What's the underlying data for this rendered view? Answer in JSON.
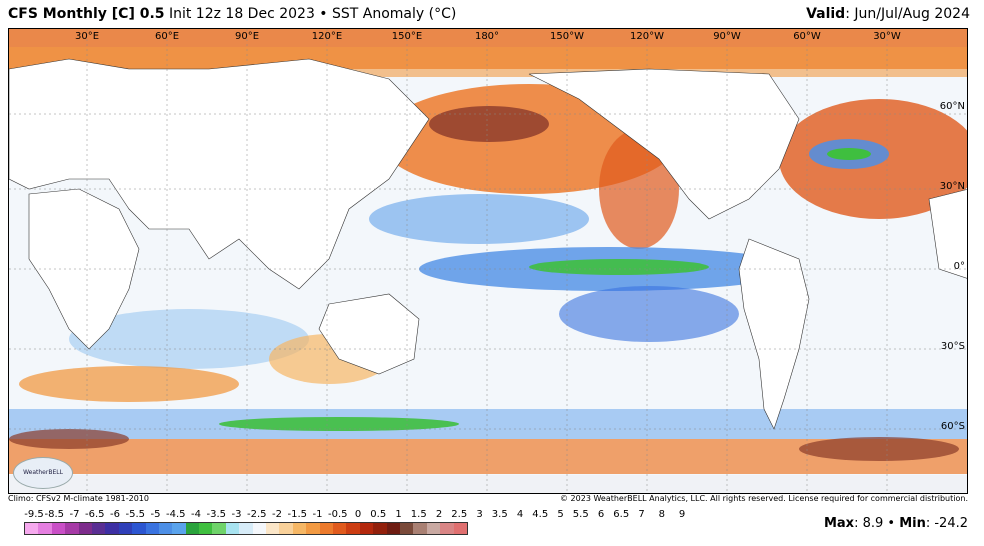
{
  "header": {
    "model": "CFS Monthly [C] 0.5",
    "degree": "°",
    "init": " Init 12z 18 Dec 2023 • SST Anomaly (°C)",
    "valid_label": "Valid",
    "valid_value": ": Jun/Jul/Aug 2024"
  },
  "map": {
    "lon_labels": [
      "30°E",
      "60°E",
      "90°E",
      "120°E",
      "150°E",
      "180°",
      "150°W",
      "120°W",
      "90°W",
      "60°W",
      "30°W"
    ],
    "lat_labels": [
      "60°N",
      "30°N",
      "0°",
      "30°S",
      "60°S"
    ]
  },
  "footer": {
    "climo": "Climo: CFSv2 M-climate 1981-2010",
    "copyright": "© 2023 WeatherBELL Analytics, LLC. All rights reserved. License required for commercial distribution."
  },
  "logo_text": "WeatherBELL",
  "colorbar": {
    "ticks": [
      "-9.5",
      "-8.5",
      "-7",
      "-6.5",
      "-6",
      "-5.5",
      "-5",
      "-4.5",
      "-4",
      "-3.5",
      "-3",
      "-2.5",
      "-2",
      "-1.5",
      "-1",
      "-0.5",
      "0",
      "0.5",
      "1",
      "1.5",
      "2",
      "2.5",
      "3",
      "3.5",
      "4",
      "4.5",
      "5",
      "5.5",
      "6",
      "6.5",
      "7",
      "8",
      "9"
    ],
    "colors": [
      "#f6a9ee",
      "#e57fe0",
      "#c94fc6",
      "#a63aa6",
      "#7d2c8c",
      "#5a2e93",
      "#3d2fa3",
      "#2f3fb8",
      "#2c56d1",
      "#3a73e0",
      "#4d8fe6",
      "#5aa3ec",
      "#2aa33c",
      "#3fbf3f",
      "#6fd36a",
      "#a8e3f0",
      "#d7ecf8",
      "#f4f7fb",
      "#fbe6c8",
      "#f9d19a",
      "#f6b765",
      "#f29a43",
      "#ec7a2c",
      "#e05a1d",
      "#cc3d12",
      "#b3280d",
      "#92200c",
      "#6e1c12",
      "#7a4a3a",
      "#a98073",
      "#c9a9a2",
      "#d98585",
      "#e07070"
    ]
  },
  "stats": {
    "max_label": "Max",
    "max_value": ": 8.9 • ",
    "min_label": "Min",
    "min_value": ": -24.2"
  }
}
